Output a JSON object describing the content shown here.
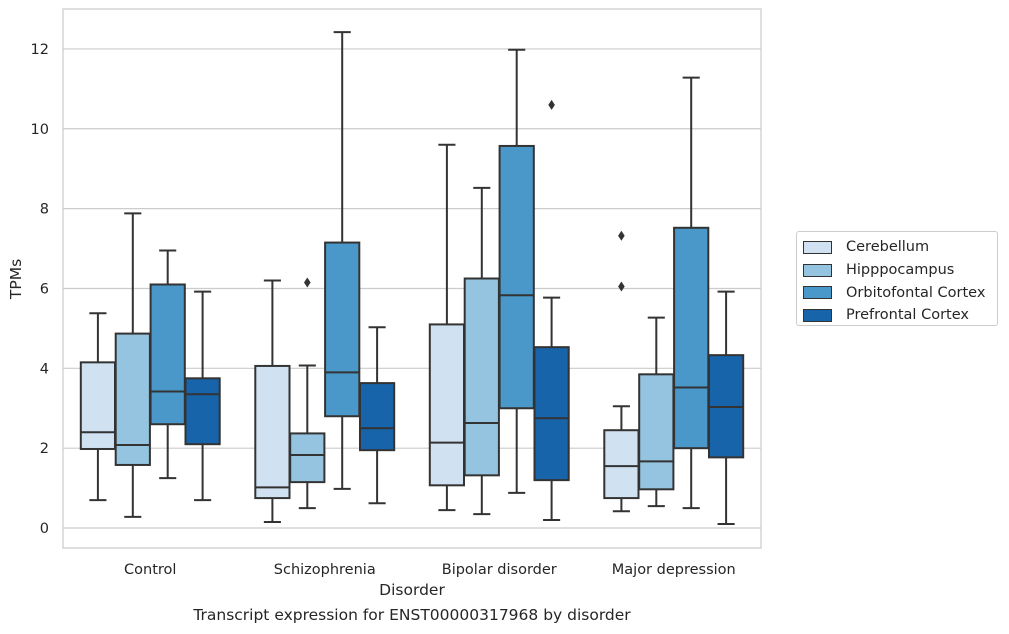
{
  "caption": "Transcript expression for ENST00000317968 by disorder",
  "chart_data": {
    "type": "box",
    "xlabel": "Disorder",
    "ylabel": "TPMs",
    "ylim": [
      -0.5,
      13
    ],
    "yticks": [
      0,
      2,
      4,
      6,
      8,
      10,
      12
    ],
    "grid": true,
    "legend_position": "right",
    "categories": [
      "Control",
      "Schizophrenia",
      "Bipolar disorder",
      "Major depression"
    ],
    "series": [
      {
        "name": "Cerebellum",
        "color": "#d0e1f2",
        "boxes": [
          {
            "whislo": 0.7,
            "q1": 1.98,
            "med": 2.4,
            "q3": 4.15,
            "whishi": 5.38,
            "fliers": []
          },
          {
            "whislo": 0.15,
            "q1": 0.75,
            "med": 1.02,
            "q3": 4.06,
            "whishi": 6.2,
            "fliers": []
          },
          {
            "whislo": 0.45,
            "q1": 1.07,
            "med": 2.14,
            "q3": 5.1,
            "whishi": 9.6,
            "fliers": []
          },
          {
            "whislo": 0.42,
            "q1": 0.75,
            "med": 1.55,
            "q3": 2.45,
            "whishi": 3.05,
            "fliers": [
              6.05,
              7.32
            ]
          }
        ]
      },
      {
        "name": "Hipppocampus",
        "color": "#94c4df",
        "boxes": [
          {
            "whislo": 0.28,
            "q1": 1.58,
            "med": 2.08,
            "q3": 4.87,
            "whishi": 7.88,
            "fliers": []
          },
          {
            "whislo": 0.5,
            "q1": 1.15,
            "med": 1.83,
            "q3": 2.37,
            "whishi": 4.07,
            "fliers": [
              6.15
            ]
          },
          {
            "whislo": 0.35,
            "q1": 1.32,
            "med": 2.63,
            "q3": 6.25,
            "whishi": 8.52,
            "fliers": []
          },
          {
            "whislo": 0.55,
            "q1": 0.97,
            "med": 1.67,
            "q3": 3.85,
            "whishi": 5.27,
            "fliers": []
          }
        ]
      },
      {
        "name": "Orbitofontal Cortex",
        "color": "#4a98c9",
        "boxes": [
          {
            "whislo": 1.25,
            "q1": 2.6,
            "med": 3.42,
            "q3": 6.1,
            "whishi": 6.95,
            "fliers": []
          },
          {
            "whislo": 0.98,
            "q1": 2.8,
            "med": 3.9,
            "q3": 7.15,
            "whishi": 12.42,
            "fliers": []
          },
          {
            "whislo": 0.88,
            "q1": 3.0,
            "med": 5.83,
            "q3": 9.57,
            "whishi": 11.98,
            "fliers": []
          },
          {
            "whislo": 0.5,
            "q1": 2.0,
            "med": 3.52,
            "q3": 7.52,
            "whishi": 11.28,
            "fliers": []
          }
        ]
      },
      {
        "name": "Prefrontal Cortex",
        "color": "#1764ab",
        "boxes": [
          {
            "whislo": 0.7,
            "q1": 2.1,
            "med": 3.35,
            "q3": 3.75,
            "whishi": 5.92,
            "fliers": []
          },
          {
            "whislo": 0.62,
            "q1": 1.95,
            "med": 2.5,
            "q3": 3.63,
            "whishi": 5.03,
            "fliers": []
          },
          {
            "whislo": 0.2,
            "q1": 1.2,
            "med": 2.75,
            "q3": 4.53,
            "whishi": 5.77,
            "fliers": [
              10.6
            ]
          },
          {
            "whislo": 0.1,
            "q1": 1.77,
            "med": 3.03,
            "q3": 4.33,
            "whishi": 5.92,
            "fliers": []
          }
        ]
      }
    ]
  }
}
